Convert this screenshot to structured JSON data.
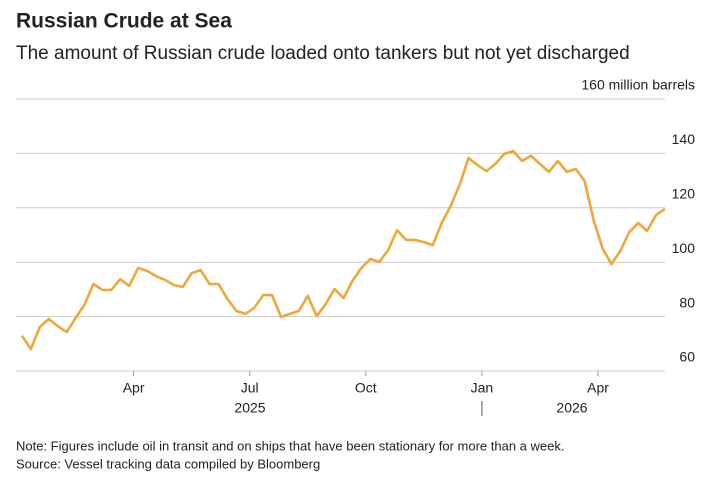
{
  "chart_data": {
    "type": "line",
    "title": "Russian Crude at Sea",
    "subtitle": "The amount of Russian crude loaded onto tankers but not yet discharged",
    "categories": [
      null,
      null,
      null,
      null,
      null,
      null,
      null,
      null,
      null,
      null,
      null,
      null,
      null,
      "Apr",
      null,
      null,
      null,
      null,
      null,
      null,
      null,
      null,
      null,
      null,
      null,
      null,
      "Jul",
      null,
      null,
      null,
      null,
      null,
      null,
      null,
      null,
      null,
      null,
      null,
      null,
      "Oct",
      null,
      null,
      null,
      null,
      null,
      null,
      null,
      null,
      null,
      null,
      null,
      null,
      "Jan",
      null,
      null,
      null,
      null,
      null,
      null,
      null,
      null,
      null,
      null,
      null,
      null,
      "Apr",
      null,
      null,
      null,
      null,
      null,
      null,
      null
    ],
    "x_year_labels": [
      "2025",
      "2026"
    ],
    "series": [
      {
        "name": "Russian crude at sea",
        "color": "#f0a73a",
        "values": [
          72.9,
          68.1,
          76.2,
          79.1,
          76.5,
          74.3,
          79.5,
          84.3,
          92,
          89.8,
          89.8,
          93.8,
          91.3,
          97.9,
          96.8,
          94.9,
          93.5,
          91.6,
          90.9,
          96,
          97.1,
          92,
          92,
          86.5,
          82.1,
          81,
          83.2,
          87.9,
          87.9,
          79.9,
          81,
          82.1,
          87.6,
          80.2,
          84.6,
          90.1,
          86.8,
          93.1,
          97.9,
          101.2,
          100.1,
          104.5,
          111.8,
          108.2,
          108.2,
          107.4,
          106.3,
          114.4,
          120.7,
          128.4,
          138.3,
          135.7,
          133.5,
          136.1,
          139.8,
          140.9,
          137.2,
          139.1,
          136.1,
          133.2,
          137.2,
          133.2,
          134.3,
          129.9,
          115.5,
          105.2,
          99.3,
          104.1,
          111.1,
          114.4,
          111.5,
          117.4,
          119.6
        ]
      }
    ],
    "ylim": [
      60,
      160
    ],
    "yticks": [
      60,
      80,
      100,
      120,
      140,
      {
        "value": 160,
        "label": "160 million barrels"
      }
    ],
    "grid": true,
    "notes": [
      "Note: Figures include oil in transit and on ships that have been stationary for more than a week.",
      "Source: Vessel tracking data compiled by Bloomberg"
    ]
  }
}
